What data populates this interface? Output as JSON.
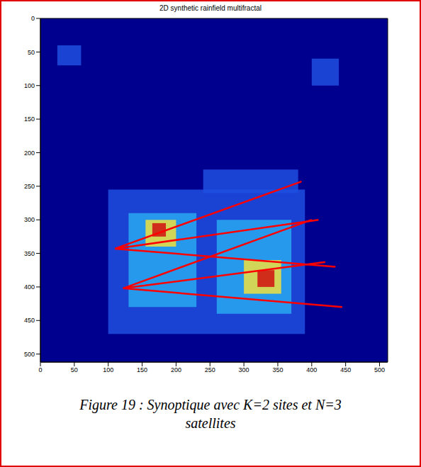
{
  "chart_data": {
    "type": "line",
    "title": "2D synthetic rainfield multifractal",
    "caption": "Figure 19 : Synoptique avec K=2 sites et N=3 satellites",
    "xlim": [
      0,
      512
    ],
    "ylim": [
      0,
      512
    ],
    "xticks": [
      0,
      50,
      100,
      150,
      200,
      250,
      300,
      350,
      400,
      450,
      500
    ],
    "yticks": [
      0,
      50,
      100,
      150,
      200,
      250,
      300,
      350,
      400,
      450,
      500
    ],
    "background": "#00008f",
    "rain_regions": [
      {
        "x1": 100,
        "x2": 390,
        "y1": 255,
        "y2": 470,
        "color": "#1f4fe0"
      },
      {
        "x1": 240,
        "x2": 380,
        "y1": 225,
        "y2": 260,
        "color": "#1f4fe0"
      },
      {
        "x1": 25,
        "x2": 60,
        "y1": 40,
        "y2": 70,
        "color": "#1f4fe0"
      },
      {
        "x1": 400,
        "x2": 440,
        "y1": 60,
        "y2": 100,
        "color": "#1f4fe0"
      },
      {
        "x1": 130,
        "x2": 230,
        "y1": 290,
        "y2": 430,
        "color": "#2aa8f0"
      },
      {
        "x1": 260,
        "x2": 370,
        "y1": 300,
        "y2": 440,
        "color": "#2aa8f0"
      },
      {
        "x1": 155,
        "x2": 200,
        "y1": 300,
        "y2": 340,
        "color": "#f0e040"
      },
      {
        "x1": 300,
        "x2": 355,
        "y1": 360,
        "y2": 410,
        "color": "#f0e040"
      },
      {
        "x1": 165,
        "x2": 185,
        "y1": 305,
        "y2": 325,
        "color": "#d01010"
      },
      {
        "x1": 320,
        "x2": 345,
        "y1": 375,
        "y2": 400,
        "color": "#d01010"
      }
    ],
    "series": [
      {
        "x": [
          110,
          385
        ],
        "values": [
          343,
          243
        ],
        "color": "#ff0000"
      },
      {
        "x": [
          110,
          410
        ],
        "values": [
          343,
          300
        ],
        "color": "#ff0000"
      },
      {
        "x": [
          110,
          435
        ],
        "values": [
          343,
          370
        ],
        "color": "#ff0000"
      },
      {
        "x": [
          122,
          400
        ],
        "values": [
          402,
          300
        ],
        "color": "#ff0000"
      },
      {
        "x": [
          122,
          420
        ],
        "values": [
          402,
          363
        ],
        "color": "#ff0000"
      },
      {
        "x": [
          122,
          445
        ],
        "values": [
          402,
          430
        ],
        "color": "#ff0000"
      }
    ]
  }
}
